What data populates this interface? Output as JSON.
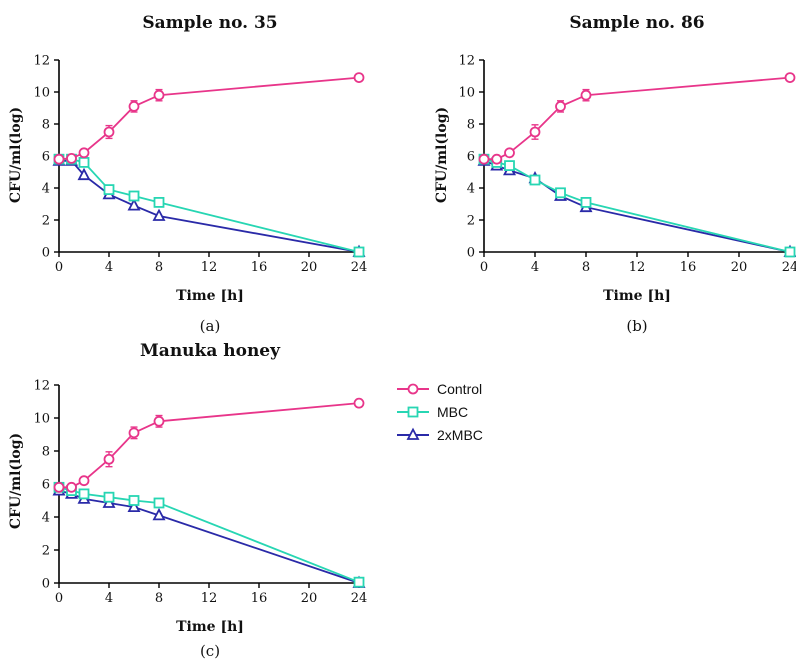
{
  "colors": {
    "Control": "#e8358a",
    "MBC": "#27d6b3",
    "2xMBC": "#2a2aa8"
  },
  "legend": {
    "items": [
      {
        "name": "Control",
        "marker": "circle"
      },
      {
        "name": "MBC",
        "marker": "square"
      },
      {
        "name": "2xMBC",
        "marker": "triangle"
      }
    ]
  },
  "chart_data": [
    {
      "type": "line",
      "title": "Sample no. 35",
      "panel_label": "(a)",
      "xlabel": "Time [h]",
      "ylabel": "CFU/ml(log)",
      "xlim": [
        0,
        24
      ],
      "ylim": [
        0,
        12
      ],
      "xticks": [
        0,
        4,
        8,
        12,
        16,
        20,
        24
      ],
      "yticks": [
        0,
        2,
        4,
        6,
        8,
        10,
        12
      ],
      "grid": false,
      "series": [
        {
          "name": "Control",
          "marker": "circle",
          "x": [
            0,
            1,
            2,
            4,
            6,
            8,
            24
          ],
          "y": [
            5.8,
            5.85,
            6.2,
            7.5,
            9.1,
            9.8,
            10.9
          ],
          "err": [
            0.1,
            0.1,
            0.15,
            0.4,
            0.35,
            0.35,
            0.1
          ]
        },
        {
          "name": "MBC",
          "marker": "square",
          "x": [
            0,
            1,
            2,
            4,
            6,
            8,
            24
          ],
          "y": [
            5.8,
            5.8,
            5.6,
            3.9,
            3.5,
            3.1,
            0
          ]
        },
        {
          "name": "2xMBC",
          "marker": "triangle",
          "x": [
            0,
            1,
            2,
            4,
            6,
            8,
            24
          ],
          "y": [
            5.7,
            5.7,
            4.8,
            3.6,
            2.9,
            2.25,
            0
          ]
        }
      ]
    },
    {
      "type": "line",
      "title": "Sample no. 86",
      "panel_label": "(b)",
      "xlabel": "Time [h]",
      "ylabel": "CFU/ml(log)",
      "xlim": [
        0,
        24
      ],
      "ylim": [
        0,
        12
      ],
      "xticks": [
        0,
        4,
        8,
        12,
        16,
        20,
        24
      ],
      "yticks": [
        0,
        2,
        4,
        6,
        8,
        10,
        12
      ],
      "grid": false,
      "series": [
        {
          "name": "Control",
          "marker": "circle",
          "x": [
            0,
            1,
            2,
            4,
            6,
            8,
            24
          ],
          "y": [
            5.8,
            5.8,
            6.2,
            7.5,
            9.1,
            9.8,
            10.9
          ],
          "err": [
            0.1,
            0.1,
            0.15,
            0.45,
            0.35,
            0.35,
            0.15
          ]
        },
        {
          "name": "MBC",
          "marker": "square",
          "x": [
            0,
            1,
            2,
            4,
            6,
            8,
            24
          ],
          "y": [
            5.8,
            5.6,
            5.4,
            4.5,
            3.7,
            3.1,
            0
          ]
        },
        {
          "name": "2xMBC",
          "marker": "triangle",
          "x": [
            0,
            1,
            2,
            4,
            6,
            8,
            24
          ],
          "y": [
            5.7,
            5.4,
            5.1,
            4.6,
            3.5,
            2.8,
            0
          ]
        }
      ]
    },
    {
      "type": "line",
      "title": "Manuka honey",
      "panel_label": "(c)",
      "xlabel": "Time [h]",
      "ylabel": "CFU/ml(log)",
      "xlim": [
        0,
        24
      ],
      "ylim": [
        0,
        12
      ],
      "xticks": [
        0,
        4,
        8,
        12,
        16,
        20,
        24
      ],
      "yticks": [
        0,
        2,
        4,
        6,
        8,
        10,
        12
      ],
      "grid": false,
      "series": [
        {
          "name": "Control",
          "marker": "circle",
          "x": [
            0,
            1,
            2,
            4,
            6,
            8,
            24
          ],
          "y": [
            5.8,
            5.8,
            6.2,
            7.5,
            9.1,
            9.8,
            10.9
          ],
          "err": [
            0.1,
            0.1,
            0.2,
            0.45,
            0.35,
            0.35,
            0.15
          ]
        },
        {
          "name": "MBC",
          "marker": "square",
          "x": [
            0,
            1,
            2,
            4,
            6,
            8,
            24
          ],
          "y": [
            5.8,
            5.6,
            5.4,
            5.2,
            5.0,
            4.85,
            0.05
          ]
        },
        {
          "name": "2xMBC",
          "marker": "triangle",
          "x": [
            0,
            1,
            2,
            4,
            6,
            8,
            24
          ],
          "y": [
            5.6,
            5.4,
            5.1,
            4.85,
            4.6,
            4.1,
            0
          ]
        }
      ]
    }
  ]
}
